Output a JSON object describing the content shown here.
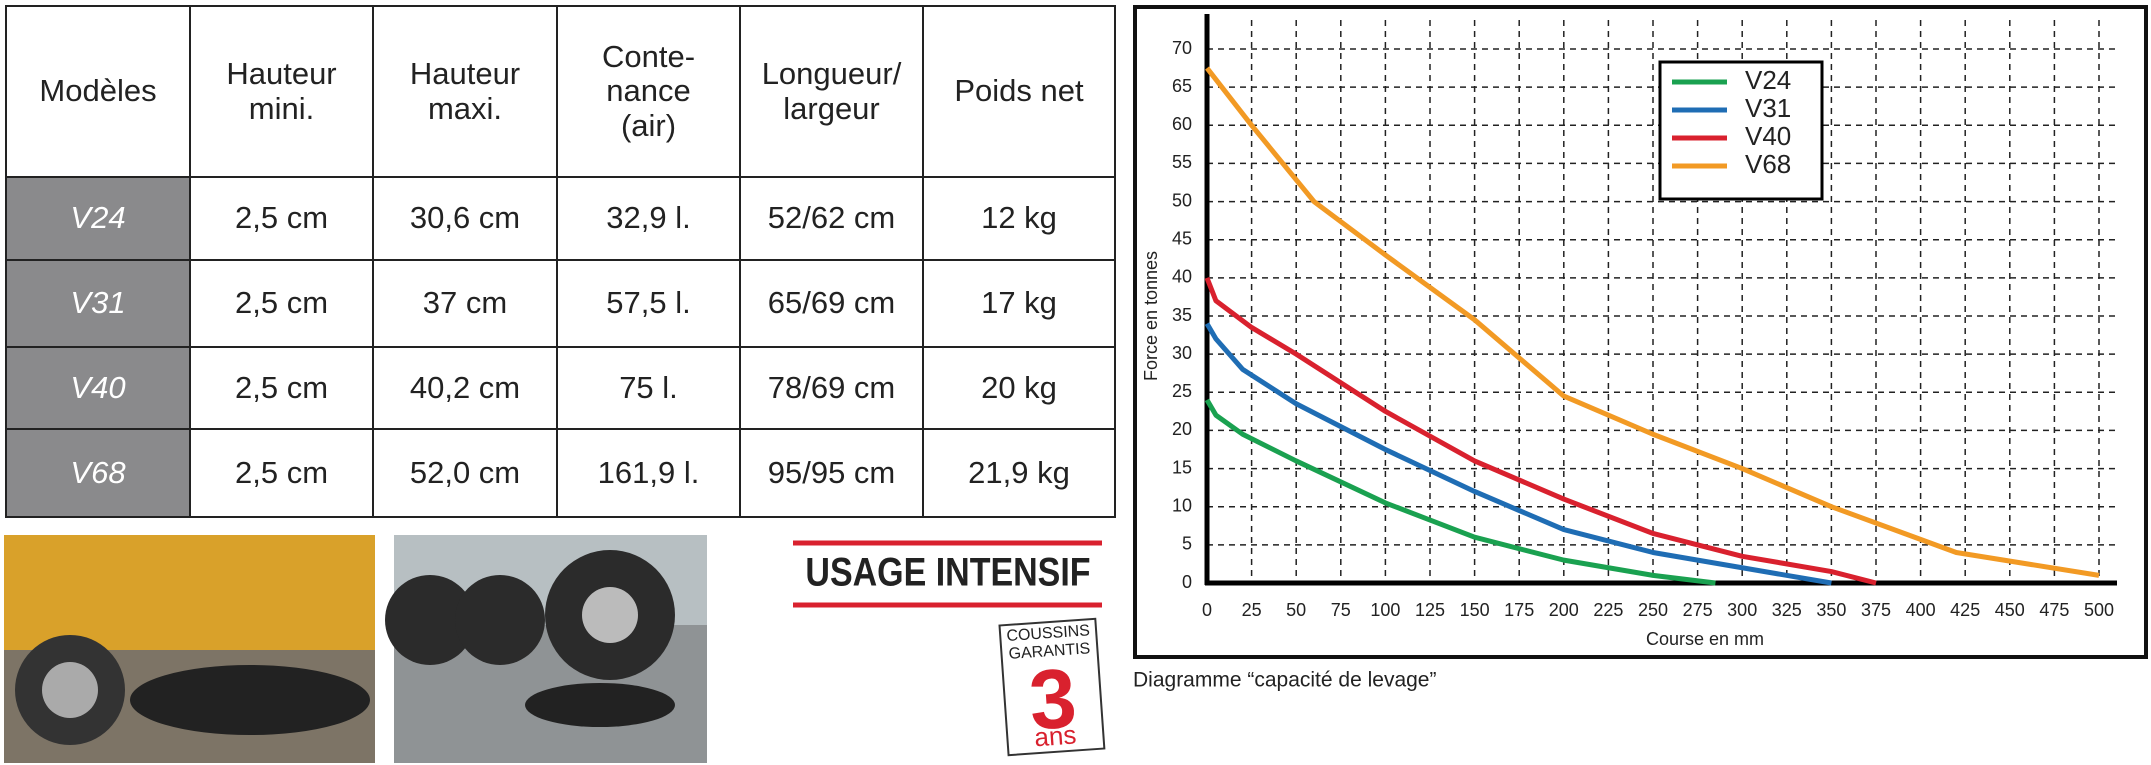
{
  "table": {
    "header": [
      "Modèles",
      "Hauteur\nmini.",
      "Hauteur\nmaxi.",
      "Conte-\nnance\n(air)",
      "Longueur/\nlargeur",
      "Poids net"
    ],
    "rows": [
      [
        "V24",
        "2,5 cm",
        "30,6 cm",
        "32,9 l.",
        "52/62 cm",
        "12 kg"
      ],
      [
        "V31",
        "2,5 cm",
        "37 cm",
        "57,5 l.",
        "65/69 cm",
        "17 kg"
      ],
      [
        "V40",
        "2,5 cm",
        "40,2 cm",
        "75 l.",
        "78/69 cm",
        "20 kg"
      ],
      [
        "V68",
        "2,5 cm",
        "52,0 cm",
        "161,9 l.",
        "95/95 cm",
        "21,9 kg"
      ]
    ]
  },
  "banner": "USAGE INTENSIF",
  "badge": {
    "top": [
      "COUSSINS",
      "GARANTIS"
    ],
    "number": "3",
    "unit": "ans"
  },
  "chart_data": {
    "type": "line",
    "caption": "Diagramme “capacité de levage”",
    "xlabel": "Course en mm",
    "ylabel": "Force en tonnes",
    "xlim": [
      0,
      500
    ],
    "ylim": [
      0,
      70
    ],
    "xticks": [
      0,
      25,
      50,
      75,
      100,
      125,
      150,
      175,
      200,
      225,
      250,
      275,
      300,
      325,
      350,
      375,
      400,
      425,
      450,
      475,
      500
    ],
    "yticks": [
      0,
      5,
      10,
      15,
      20,
      25,
      30,
      35,
      40,
      45,
      50,
      55,
      60,
      65,
      70
    ],
    "grid": true,
    "legend": "top-right",
    "series": [
      {
        "name": "V24",
        "color": "#1aa150",
        "x": [
          0,
          5,
          20,
          50,
          100,
          150,
          200,
          250,
          285
        ],
        "values": [
          24,
          22,
          19.5,
          16,
          10.5,
          6,
          3,
          1,
          0
        ]
      },
      {
        "name": "V31",
        "color": "#1f6db4",
        "x": [
          0,
          5,
          20,
          50,
          100,
          150,
          200,
          250,
          300,
          350
        ],
        "values": [
          34,
          32,
          28,
          23.5,
          17.5,
          12,
          7,
          4,
          2,
          0
        ]
      },
      {
        "name": "V40",
        "color": "#d9212e",
        "x": [
          0,
          5,
          25,
          50,
          100,
          150,
          200,
          250,
          300,
          350,
          375
        ],
        "values": [
          40,
          37,
          33.5,
          30,
          22.5,
          16,
          11,
          6.5,
          3.5,
          1.5,
          0
        ]
      },
      {
        "name": "V68",
        "color": "#f29a24",
        "x": [
          0,
          25,
          60,
          100,
          150,
          200,
          250,
          300,
          350,
          420,
          500
        ],
        "values": [
          67.5,
          60,
          50,
          43,
          34.5,
          24.5,
          19.5,
          15,
          10,
          4,
          1
        ]
      }
    ]
  }
}
